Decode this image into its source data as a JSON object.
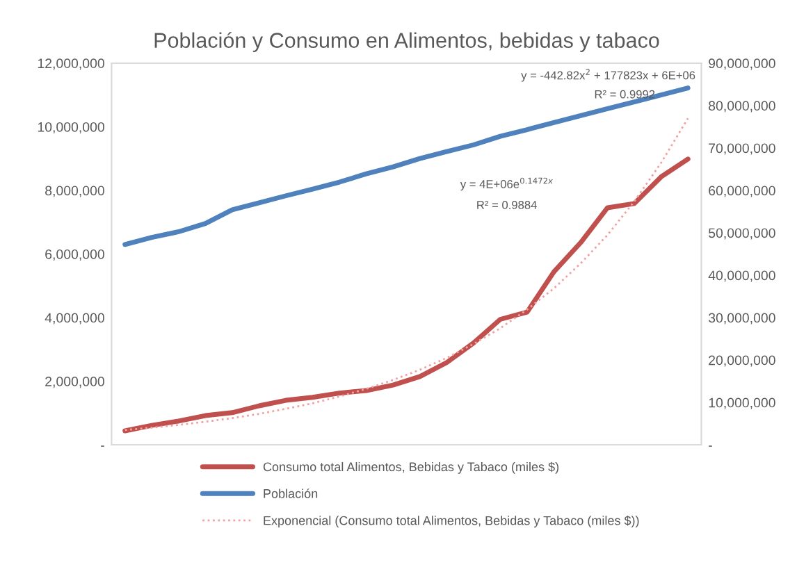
{
  "chart_data": {
    "type": "line",
    "title": "Población y Consumo en Alimentos, bebidas y tabaco",
    "categories": [
      null,
      null,
      null,
      null,
      null,
      null,
      null,
      null,
      null,
      null,
      null,
      null,
      null,
      null,
      null,
      null,
      null,
      null,
      null,
      null,
      null,
      null
    ],
    "series": [
      {
        "name": "Consumo total Alimentos, Bebidas y Tabaco (miles $)",
        "color": "#c0504d",
        "axis": "y2",
        "line_style": "solid",
        "values": [
          3300000.0,
          4600000.0,
          5600000.0,
          6900000.0,
          7600000.0,
          9200000.0,
          10500000.0,
          11200000.0,
          12200000.0,
          12800000.0,
          14100000.0,
          16100000.0,
          19400000.0,
          24000000.0,
          29600000.0,
          31300000.0,
          40800000.0,
          47700000.0,
          55900000.0,
          56900000.0,
          63200000.0,
          67400000.0
        ]
      },
      {
        "name": "Población",
        "color": "#4f81bd",
        "axis": "y",
        "line_style": "solid",
        "values": [
          6300000.0,
          6520000.0,
          6700000.0,
          6960000.0,
          7390000.0,
          7610000.0,
          7830000.0,
          8040000.0,
          8260000.0,
          8520000.0,
          8740000.0,
          9000000.0,
          9220000.0,
          9430000.0,
          9700000.0,
          9910000.0,
          10130000.0,
          10350000.0,
          10570000.0,
          10780000.0,
          11000000.0,
          11220000.0
        ]
      },
      {
        "name": "Exponencial (Consumo total Alimentos, Bebidas y Tabaco (miles $))",
        "color": "#f2a0a0",
        "axis": "y2",
        "line_style": "dotted",
        "values": [
          3500000.0,
          4050000.0,
          4700000.0,
          5450000.0,
          6300000.0,
          7300000.0,
          8500000.0,
          9800000.0,
          11400000.0,
          13200000.0,
          15300000.0,
          17700000.0,
          20500000.0,
          23800000.0,
          27500000.0,
          31900000.0,
          36900000.0,
          42800000.0,
          49500000.0,
          57400000.0,
          66500000.0,
          77000000.0
        ]
      }
    ],
    "ylim": [
      0,
      12000000
    ],
    "yticks": [
      {
        "value": 0,
        "label": "-"
      },
      {
        "value": 2000000,
        "label": "2,000,000"
      },
      {
        "value": 4000000,
        "label": "4,000,000"
      },
      {
        "value": 6000000,
        "label": "6,000,000"
      },
      {
        "value": 8000000,
        "label": "8,000,000"
      },
      {
        "value": 10000000,
        "label": "10,000,000"
      },
      {
        "value": 12000000,
        "label": "12,000,000"
      }
    ],
    "y2lim": [
      0,
      90000000
    ],
    "y2ticks": [
      {
        "value": 0,
        "label": "-"
      },
      {
        "value": 10000000,
        "label": "10,000,000"
      },
      {
        "value": 20000000,
        "label": "20,000,000"
      },
      {
        "value": 30000000,
        "label": "30,000,000"
      },
      {
        "value": 40000000,
        "label": "40,000,000"
      },
      {
        "value": 50000000,
        "label": "50,000,000"
      },
      {
        "value": 60000000,
        "label": "60,000,000"
      },
      {
        "value": 70000000,
        "label": "70,000,000"
      },
      {
        "value": 80000000,
        "label": "80,000,000"
      },
      {
        "value": 90000000,
        "label": "90,000,000"
      }
    ],
    "annotations": [
      "y = -442.82x$^{2}$ + 177823x + 6E+06",
      "R² = 0.9992",
      "y = 4E+06e$^{0.1472x}$",
      "R² = 0.9884"
    ],
    "legend": "bottom",
    "grid": false,
    "tick_labels": "y"
  }
}
